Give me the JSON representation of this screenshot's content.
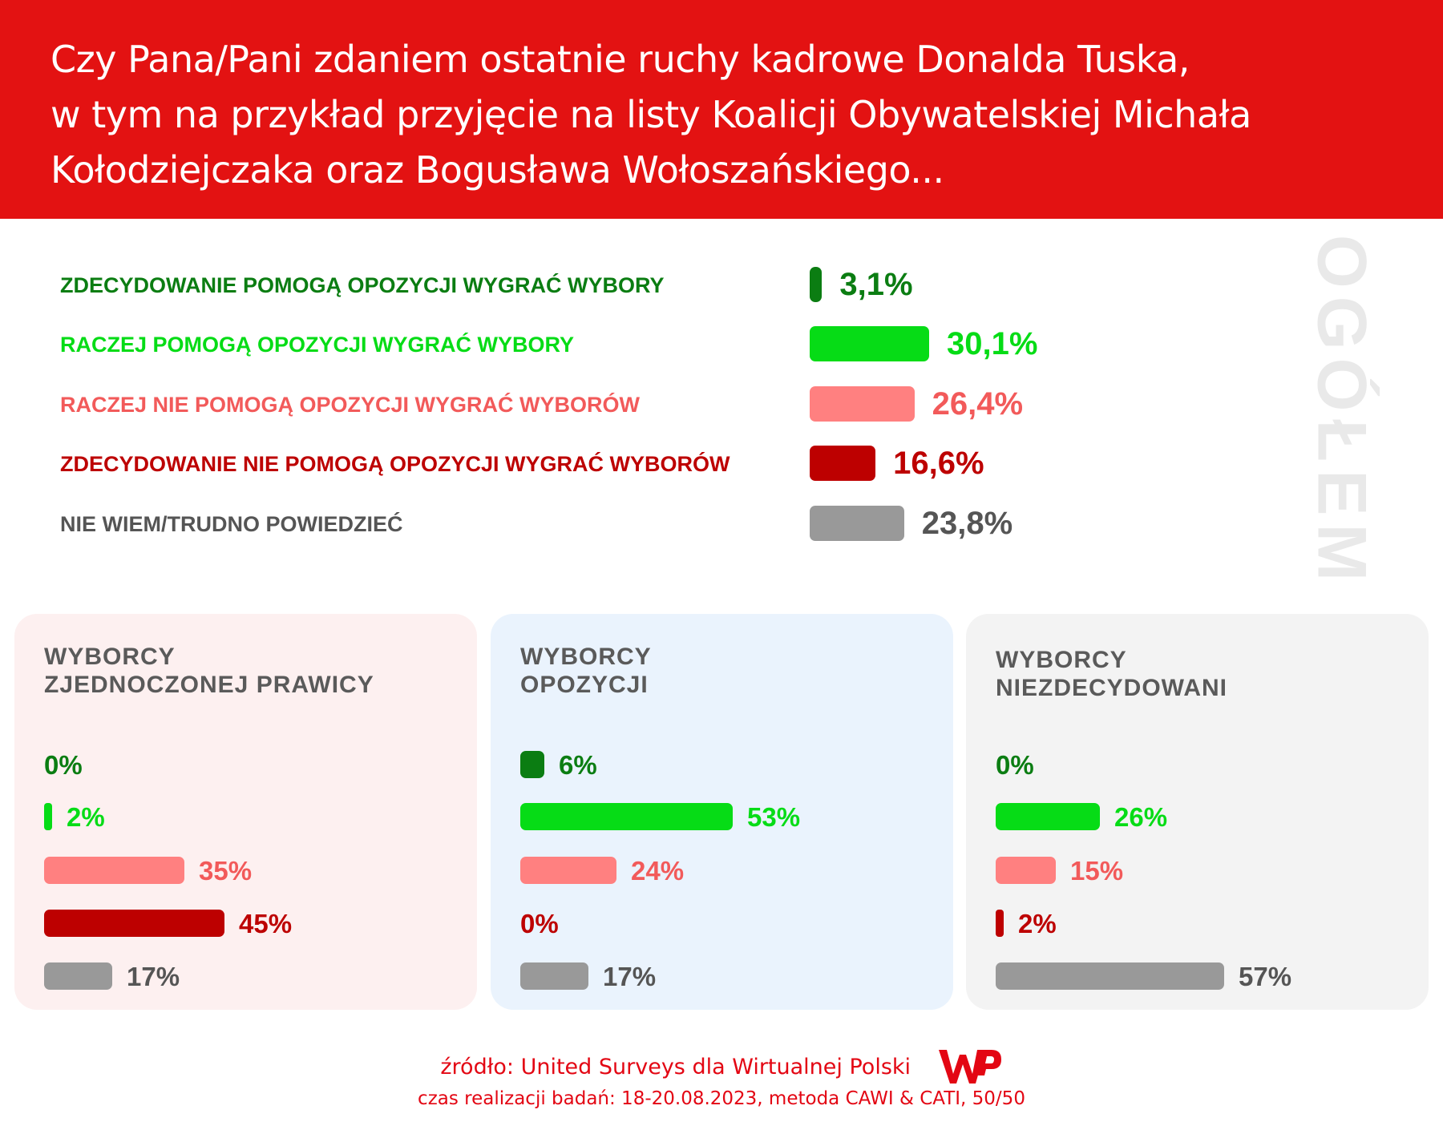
{
  "header": {
    "title_lines": [
      "Czy Pana/Pani zdaniem ostatnie ruchy kadrowe Donalda Tuska,",
      "w tym na przykład przyjęcie na listy Koalicji Obywatelskiej Michała",
      "Kołodziejczaka oraz Bogusława Wołoszańskiego..."
    ]
  },
  "colors": {
    "header": "#e31212",
    "dark_green": "#0b7d12",
    "green": "#06dc16",
    "salmon": "#ff8080",
    "salmon_text": "#f25a5a",
    "dark_red": "#bd0000",
    "gray": "#999999",
    "gray_text": "#555555"
  },
  "chart_data": [
    {
      "type": "bar",
      "title": "OGÓŁEM",
      "categories": [
        "ZDECYDOWANIE POMOGĄ OPOZYCJI WYGRAĆ WYBORY",
        "RACZEJ POMOGĄ OPOZYCJI WYGRAĆ WYBORY",
        "RACZEJ NIE POMOGĄ OPOZYCJI WYGRAĆ WYBORÓW",
        "ZDECYDOWANIE NIE POMOGĄ OPOZYCJI WYGRAĆ WYBORÓW",
        "NIE WIEM/TRUDNO POWIEDZIEĆ"
      ],
      "values": [
        3.1,
        30.1,
        26.4,
        16.6,
        23.8
      ],
      "labels": [
        "3,1%",
        "30,1%",
        "26,4%",
        "16,6%",
        "23,8%"
      ],
      "unit": "%"
    },
    {
      "type": "bar",
      "title": "WYBORCY\nZJEDNOCZONEJ PRAWICY",
      "title_lines": [
        "WYBORCY",
        "ZJEDNOCZONEJ PRAWICY"
      ],
      "values": [
        0,
        2,
        35,
        45,
        17
      ],
      "labels": [
        "0%",
        "2%",
        "35%",
        "45%",
        "17%"
      ]
    },
    {
      "type": "bar",
      "title": "WYBORCY\nOPOZYCJI",
      "title_lines": [
        "WYBORCY",
        "OPOZYCJI"
      ],
      "values": [
        6,
        53,
        24,
        0,
        17
      ],
      "labels": [
        "6%",
        "53%",
        "24%",
        "0%",
        "17%"
      ]
    },
    {
      "type": "bar",
      "title": "WYBORCY\nNIEZDECYDOWANI",
      "title_lines": [
        "WYBORCY",
        "NIEZDECYDOWANI"
      ],
      "values": [
        0,
        26,
        15,
        2,
        57
      ],
      "labels": [
        "0%",
        "26%",
        "15%",
        "2%",
        "57%"
      ]
    }
  ],
  "footer": {
    "source": "źródło: United Surveys dla Wirtualnej Polski",
    "logo_text": "WP",
    "method": "czas realizacji badań: 18-20.08.2023, metoda CAWI & CATI, 50/50"
  }
}
